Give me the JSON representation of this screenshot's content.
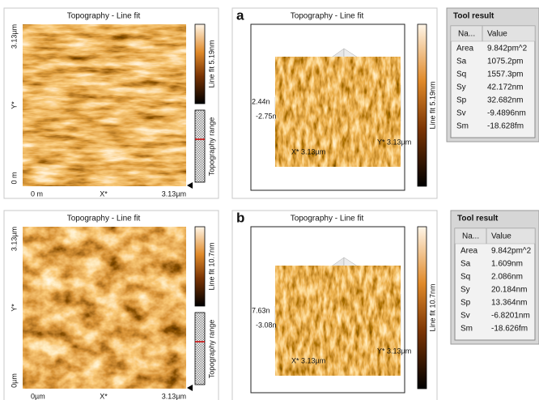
{
  "panels": [
    {
      "label": "a",
      "image_2d": {
        "title": "Topography - Line fit",
        "y_labels": [
          "3.13µm",
          "Y*",
          "0 m"
        ],
        "x_labels": [
          "0 m",
          "X*",
          "3.13µm"
        ],
        "colorbar_label": "Line fit 5.19nm",
        "range_label": "Topography range"
      },
      "view_3d": {
        "title": "Topography - Line fit",
        "z_labels": [
          "2.44n",
          "-2.75n"
        ],
        "x_axis": "X* 3.13µm",
        "y_axis": "Y* 3.13µm",
        "colorbar_label": "Line fit 5.19nm"
      },
      "tool_result": {
        "title": "Tool result",
        "columns": [
          "Na...",
          "Value"
        ],
        "rows": [
          [
            "Area",
            "9.842pm^2"
          ],
          [
            "Sa",
            "1075.2pm"
          ],
          [
            "Sq",
            "1557.3pm"
          ],
          [
            "Sy",
            "42.172nm"
          ],
          [
            "Sp",
            "32.682nm"
          ],
          [
            "Sv",
            "-9.4896nm"
          ],
          [
            "Sm",
            "-18.628fm"
          ]
        ]
      }
    },
    {
      "label": "b",
      "image_2d": {
        "title": "Topography - Line fit",
        "y_labels": [
          "3.13µm",
          "Y*",
          "0µm"
        ],
        "x_labels": [
          "0µm",
          "X*",
          "3.13µm"
        ],
        "colorbar_label": "Line fit 10.7nm",
        "range_label": "Topography range"
      },
      "view_3d": {
        "title": "Topography - Line fit",
        "z_labels": [
          "7.63n",
          "-3.08n"
        ],
        "x_axis": "X* 3.13µm",
        "y_axis": "Y* 3.13µm",
        "colorbar_label": "Line fit 10.7nm"
      },
      "tool_result": {
        "title": "Tool result",
        "columns": [
          "Na...",
          "Value"
        ],
        "rows": [
          [
            "Area",
            "9.842pm^2"
          ],
          [
            "Sa",
            "1.609nm"
          ],
          [
            "Sq",
            "2.086nm"
          ],
          [
            "Sy",
            "20.184nm"
          ],
          [
            "Sp",
            "13.364nm"
          ],
          [
            "Sv",
            "-6.8201nm"
          ],
          [
            "Sm",
            "-18.626fm"
          ]
        ]
      }
    }
  ]
}
